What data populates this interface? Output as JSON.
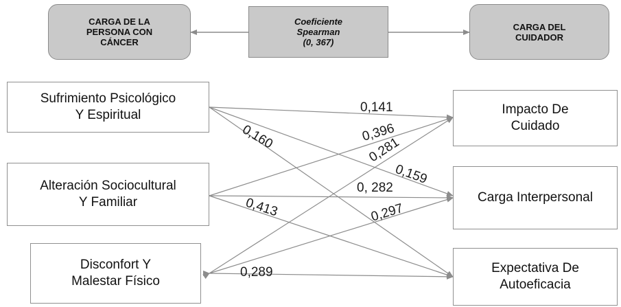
{
  "header": {
    "left": "CARGA DE LA\nPERSONA CON\nCÁNCER",
    "center": "Coeficiente\nSpearman\n(0, 367)",
    "right": "CARGA DEL\nCUIDADOR"
  },
  "left_boxes": [
    "Sufrimiento Psicológico\nY Espiritual",
    "Alteración Sociocultural\nY Familiar",
    "Disconfort Y\nMalestar Físico"
  ],
  "right_boxes": [
    "Impacto De\nCuidado",
    "Carga Interpersonal",
    "Expectativa De\nAutoeficacia"
  ],
  "coefficients": {
    "c0141": "0,141",
    "c0396": "0,396",
    "c0160": "0,160",
    "c0281": "0,281",
    "c0159": "0,159",
    "c0282": "0, 282",
    "c0413": "0,413",
    "c0297": "0,297",
    "c0289": "0,289"
  }
}
